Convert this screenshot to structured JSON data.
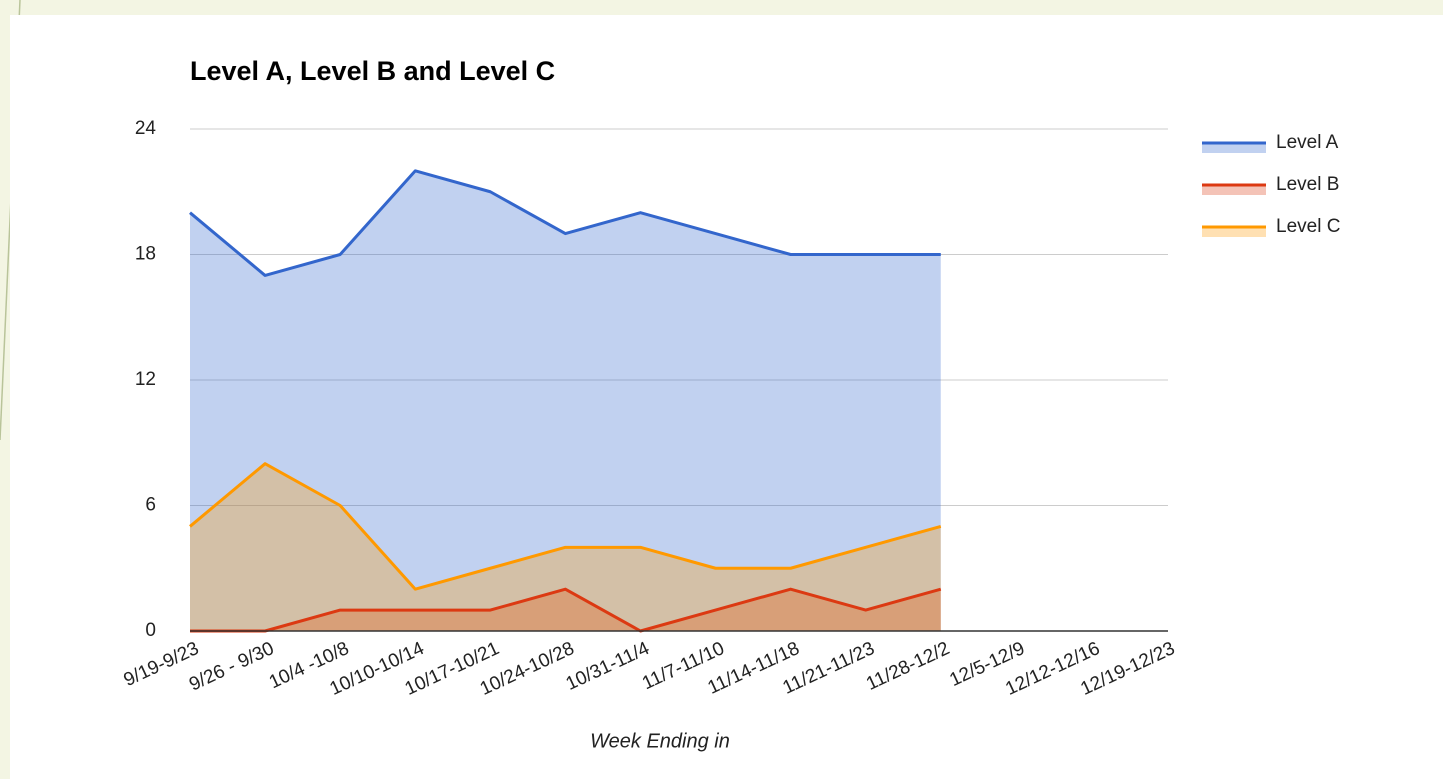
{
  "chart_data": {
    "type": "area",
    "title": "Level A, Level B and Level C",
    "x_label": "Week Ending in",
    "categories": [
      "9/19-9/23",
      "9/26 - 9/30",
      "10/4 -10/8",
      "10/10-10/14",
      "10/17-10/21",
      "10/24-10/28",
      "10/31-11/4",
      "11/7-11/10",
      "11/14-11/18",
      "11/21-11/23",
      "11/28-12/2",
      "12/5-12/9",
      "12/12-12/16",
      "12/19-12/23"
    ],
    "series": [
      {
        "name": "Level A",
        "color": "#3366cc",
        "values": [
          20,
          17,
          18,
          22,
          21,
          19,
          20,
          19,
          18,
          18,
          18,
          null,
          null,
          null
        ]
      },
      {
        "name": "Level B",
        "color": "#dc3912",
        "values": [
          0,
          0,
          1,
          1,
          1,
          2,
          0,
          1,
          2,
          1,
          2,
          null,
          null,
          null
        ]
      },
      {
        "name": "Level C",
        "color": "#ff9900",
        "values": [
          5,
          8,
          6,
          2,
          3,
          4,
          4,
          3,
          3,
          4,
          5,
          null,
          null,
          null
        ]
      }
    ],
    "ylim": [
      0,
      24
    ],
    "yticks": [
      0,
      6,
      12,
      18,
      24
    ],
    "grid": true,
    "legend": "right"
  }
}
